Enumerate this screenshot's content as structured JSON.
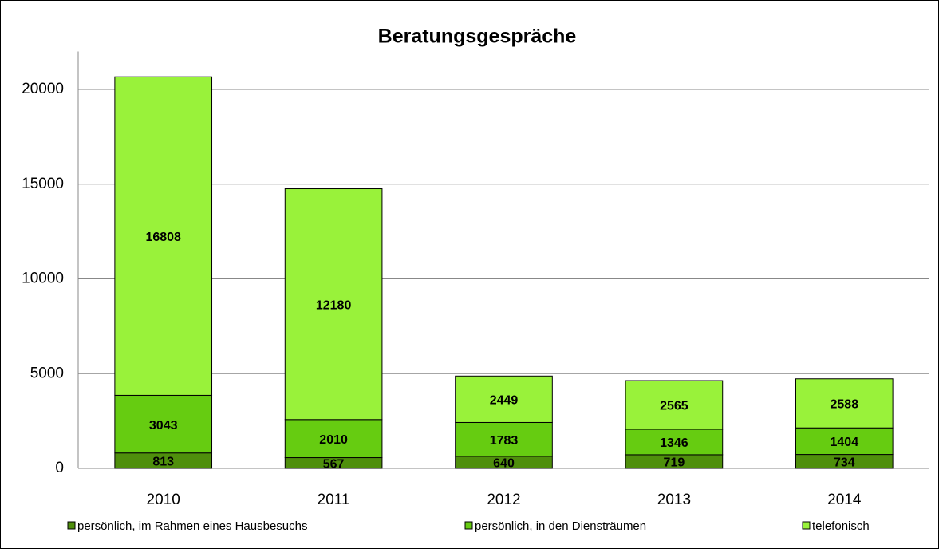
{
  "chart_data": {
    "type": "stacked_bar",
    "title": "Beratungsgespräche",
    "categories": [
      "2010",
      "2011",
      "2012",
      "2013",
      "2014"
    ],
    "series": [
      {
        "name": "persönlich, im Rahmen eines Hausbesuchs",
        "color": "#4f8f0c",
        "values": [
          813,
          567,
          640,
          719,
          734
        ]
      },
      {
        "name": "persönlich, in den Diensträumen",
        "color": "#66cc11",
        "values": [
          3043,
          2010,
          1783,
          1346,
          1404
        ]
      },
      {
        "name": "telefonisch",
        "color": "#99f23a",
        "values": [
          16808,
          12180,
          2449,
          2565,
          2588
        ]
      }
    ],
    "ylim": [
      0,
      22000
    ],
    "yticks": [
      0,
      5000,
      10000,
      15000,
      20000
    ],
    "grid": true,
    "legend": "bottom"
  }
}
